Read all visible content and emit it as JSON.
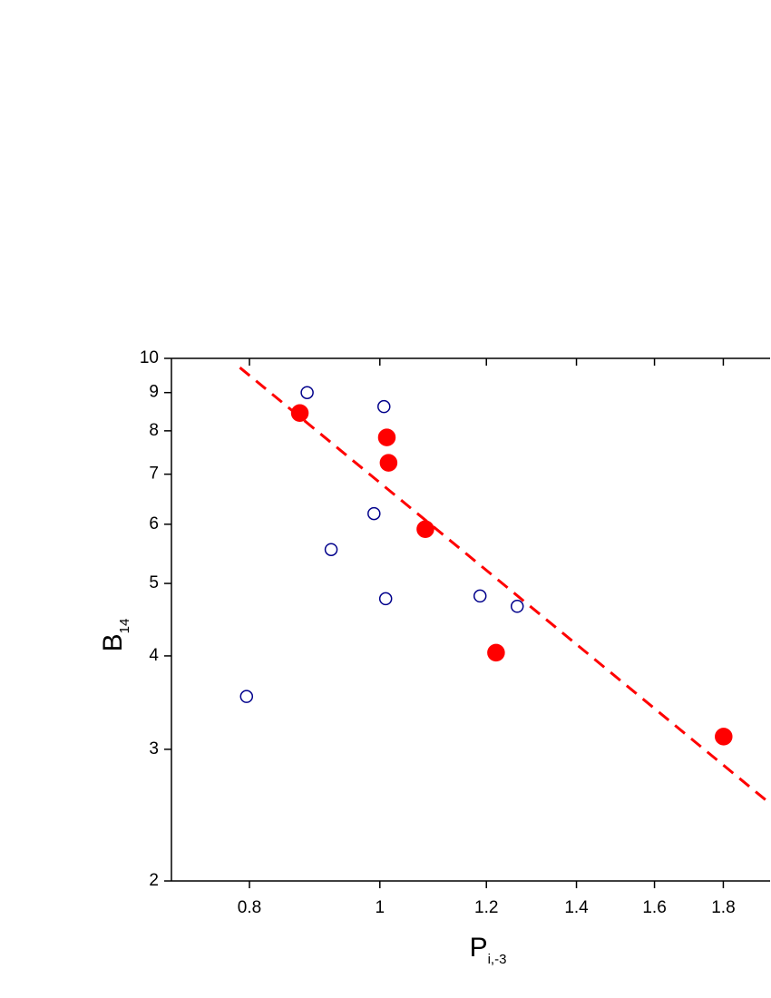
{
  "chart_data": {
    "type": "scatter",
    "x_label": "P",
    "x_label_sub": "i,-3",
    "y_label": "B",
    "y_label_sub": "14",
    "xscale": "log",
    "yscale": "log",
    "xlim": [
      0.7,
      1.95
    ],
    "ylim": [
      2,
      10
    ],
    "xticks": [
      0.8,
      1,
      1.2,
      1.4,
      1.6,
      1.8
    ],
    "yticks": [
      2,
      3,
      4,
      5,
      6,
      7,
      8,
      9,
      10
    ],
    "series": [
      {
        "color": "#00008b",
        "marker": "open",
        "x": [
          0.796,
          0.883,
          0.92,
          0.99,
          1.007,
          1.01,
          1.187,
          1.265
        ],
        "values": [
          3.53,
          9.0,
          5.55,
          6.2,
          8.62,
          4.77,
          4.81,
          4.66
        ]
      },
      {
        "color": "#ff0000",
        "marker": "filled",
        "x": [
          0.872,
          1.012,
          1.015,
          1.081,
          1.22,
          1.801
        ],
        "values": [
          8.45,
          7.84,
          7.25,
          5.91,
          4.04,
          3.12
        ]
      },
      {
        "color": "#ff0000",
        "marker": "dashed-line",
        "x": [
          0.787,
          1.944
        ],
        "values": [
          9.72,
          2.55
        ]
      }
    ]
  }
}
